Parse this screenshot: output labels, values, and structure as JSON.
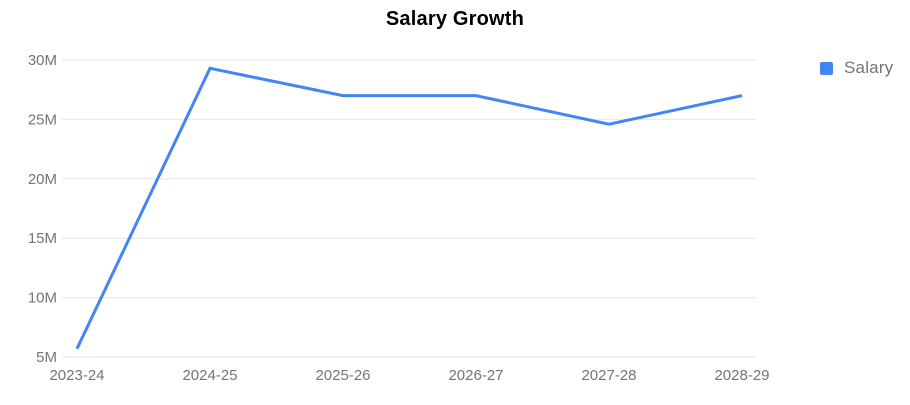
{
  "title": "Salary Growth",
  "colors": {
    "series_line": "#4285f4",
    "legend_swatch": "#4285f4",
    "gridline": "#e6e6e6",
    "axis_text": "#757575",
    "title_text": "#000000",
    "background": "#ffffff"
  },
  "legend": {
    "position": "right",
    "entries": [
      {
        "label": "Salary",
        "color": "#4285f4",
        "marker": "square"
      }
    ]
  },
  "chart_data": {
    "type": "line",
    "title": "Salary Growth",
    "xlabel": "",
    "ylabel": "",
    "categories": [
      "2023-24",
      "2024-25",
      "2025-26",
      "2026-27",
      "2027-28",
      "2028-29"
    ],
    "series": [
      {
        "name": "Salary",
        "values_millions": [
          5.7,
          29.3,
          27,
          27,
          24.6,
          27
        ],
        "color": "#4285f4"
      }
    ],
    "y_unit": "M",
    "ylim": [
      5,
      30
    ],
    "yticks": [
      5,
      10,
      15,
      20,
      25,
      30
    ],
    "ytick_labels": [
      "5M",
      "10M",
      "15M",
      "20M",
      "25M",
      "30M"
    ],
    "grid": true,
    "legend_position": "right",
    "point_markers": false
  }
}
